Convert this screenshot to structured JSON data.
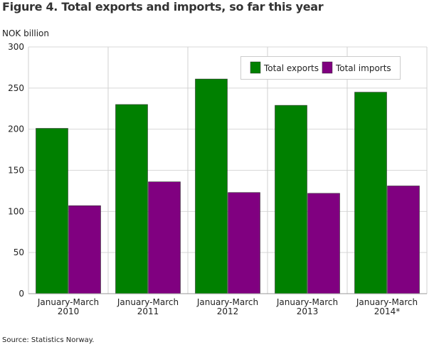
{
  "chart_data": {
    "type": "bar",
    "title": "Figure 4. Total exports and imports, so far this year",
    "ylabel": "NOK billion",
    "xlabel": "",
    "ylim": [
      0,
      300
    ],
    "yticks": [
      0,
      50,
      100,
      150,
      200,
      250,
      300
    ],
    "grid": true,
    "legend_position": "top-right",
    "categories": [
      [
        "January-March",
        "2010"
      ],
      [
        "January-March",
        "2011"
      ],
      [
        "January-March",
        "2012"
      ],
      [
        "January-March",
        "2013"
      ],
      [
        "January-March",
        "2014*"
      ]
    ],
    "series": [
      {
        "name": "Total exports",
        "color": "#008000",
        "values": [
          201,
          230,
          261,
          229,
          245
        ]
      },
      {
        "name": "Total imports",
        "color": "#800080",
        "values": [
          107,
          136,
          123,
          122,
          131
        ]
      }
    ]
  },
  "source": "Source: Statistics Norway."
}
